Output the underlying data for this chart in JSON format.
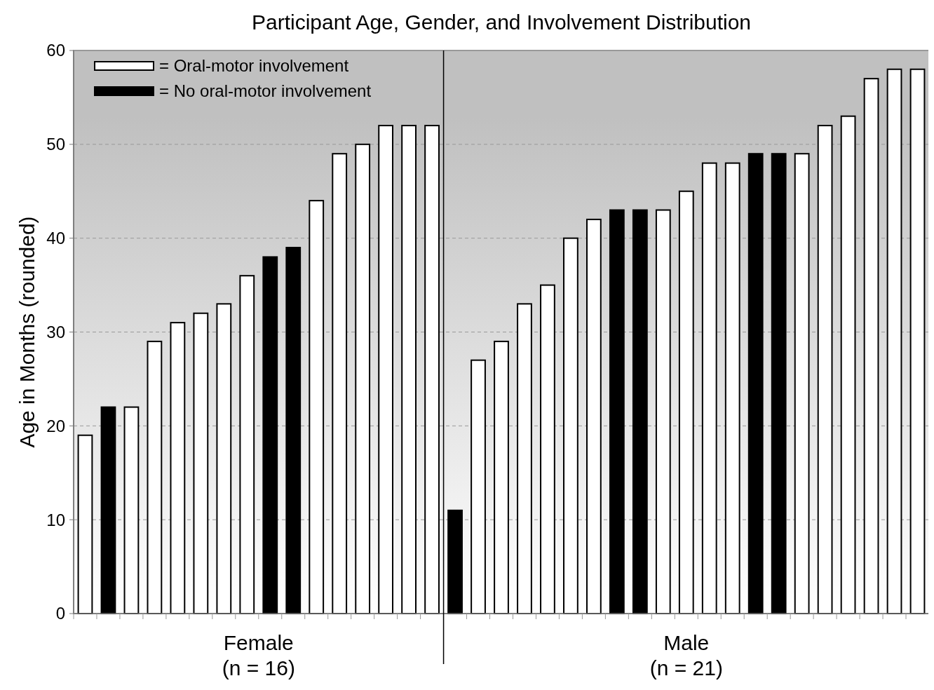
{
  "chart_data": {
    "type": "bar",
    "title": "Participant Age, Gender, and Involvement Distribution",
    "ylabel": "Age in Months (rounded)",
    "categories": [
      null,
      null,
      null,
      null,
      null,
      null,
      null,
      null,
      null,
      null,
      null,
      null,
      null,
      null,
      null,
      null,
      null,
      null,
      null,
      null,
      null,
      null,
      null,
      null,
      null,
      null,
      null,
      null,
      null,
      null,
      null,
      null,
      null,
      null,
      null,
      null,
      null
    ],
    "series": [
      {
        "name": "= Oral-motor involvement",
        "color": "#ffffff",
        "values": [
          19,
          null,
          22,
          29,
          31,
          32,
          33,
          36,
          null,
          null,
          44,
          49,
          50,
          52,
          52,
          52,
          null,
          27,
          29,
          33,
          35,
          40,
          42,
          null,
          null,
          43,
          45,
          48,
          48,
          null,
          null,
          49,
          52,
          53,
          57,
          58,
          58
        ]
      },
      {
        "name": "= No oral-motor involvement",
        "color": "#000000",
        "values": [
          null,
          22,
          null,
          null,
          null,
          null,
          null,
          null,
          38,
          39,
          null,
          null,
          null,
          null,
          null,
          null,
          11,
          null,
          null,
          null,
          null,
          null,
          null,
          43,
          43,
          null,
          null,
          null,
          null,
          49,
          49,
          null,
          null,
          null,
          null,
          null,
          null
        ]
      }
    ],
    "ylim": [
      0,
      60
    ],
    "yticks": [
      0,
      10,
      20,
      30,
      40,
      50,
      60
    ],
    "grid": "y",
    "legend": "top left",
    "annotations": [
      "Female\n(n = 16)",
      "Male\n(n = 21)"
    ]
  }
}
